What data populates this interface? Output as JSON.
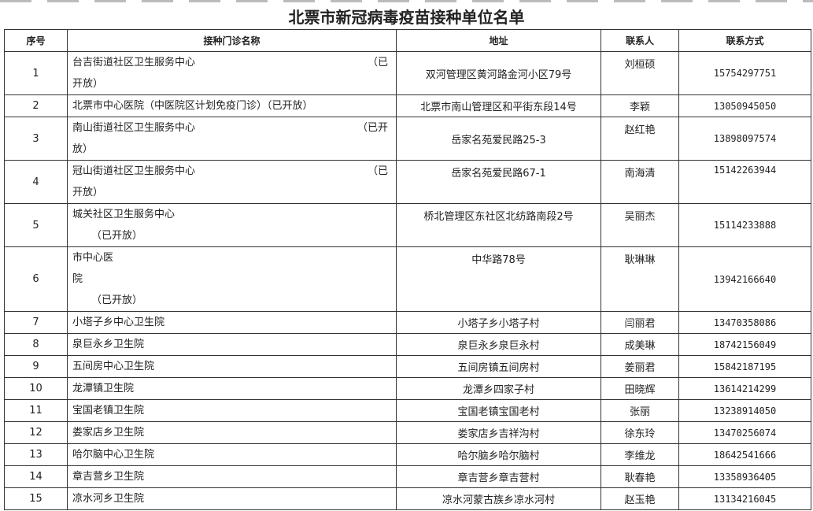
{
  "title": "北票市新冠病毒疫苗接种单位名单",
  "headers": [
    "序号",
    "接种门诊名称",
    "地址",
    "联系人",
    "联系方式"
  ],
  "rows": [
    {
      "no": "1",
      "name": [
        {
          "text": "台吉街道社区卫生服务中心",
          "right": "（已"
        },
        {
          "text": "开放）"
        }
      ],
      "addr": "双河管理区黄河路金河小区79号",
      "person": "刘桓硕",
      "phone": "15754297751",
      "h": 55,
      "addrTop": false
    },
    {
      "no": "2",
      "name": [
        {
          "text": "北票市中心医院（中医院区计划免疫门诊）（已开放）"
        }
      ],
      "addr": "北票市南山管理区和平街东段14号",
      "person": "李颖",
      "phone": "13050945050",
      "h": 28,
      "addrTop": false
    },
    {
      "no": "3",
      "name": [
        {
          "text": "南山街道社区卫生服务中心",
          "right": "（已开"
        },
        {
          "text": "放）"
        }
      ],
      "addr": "岳家名苑爱民路25-3",
      "person": "赵红艳",
      "phone": "13898097574",
      "h": 55,
      "addrTop": false
    },
    {
      "no": "4",
      "name": [
        {
          "text": "冠山街道社区卫生服务中心",
          "right": "（已"
        },
        {
          "text": "开放）"
        }
      ],
      "addr": "岳家名苑爱民路67-1",
      "person": "南海清",
      "phone": "15142263944",
      "h": 55,
      "addrTop": true,
      "phoneTop": true
    },
    {
      "no": "5",
      "name": [
        {
          "text": "城关社区卫生服务中心"
        },
        {
          "text": "（已开放）",
          "indent": true
        }
      ],
      "addr": "桥北管理区东社区北纺路南段2号",
      "person": "吴丽杰",
      "phone": "15114233888",
      "h": 55,
      "addrTop": true
    },
    {
      "no": "6",
      "name": [
        {
          "text": "市中心医"
        },
        {
          "text": "院"
        },
        {
          "text": "（已开放）",
          "indent": true
        }
      ],
      "addr": "中华路78号",
      "person": "耿琳琳",
      "phone": "13942166640",
      "h": 82,
      "addrTop": true
    },
    {
      "no": "7",
      "name": [
        {
          "text": "小塔子乡中心卫生院"
        }
      ],
      "addr": "小塔子乡小塔子村",
      "person": "闫丽君",
      "phone": "13470358086",
      "h": 28
    },
    {
      "no": "8",
      "name": [
        {
          "text": "泉巨永乡卫生院"
        }
      ],
      "addr": "泉巨永乡泉巨永村",
      "person": "成美琳",
      "phone": "18742156049",
      "h": 28
    },
    {
      "no": "9",
      "name": [
        {
          "text": "五间房中心卫生院"
        }
      ],
      "addr": "五间房镇五间房村",
      "person": "姜丽君",
      "phone": "15842187195",
      "h": 28
    },
    {
      "no": "10",
      "name": [
        {
          "text": "龙潭镇卫生院"
        }
      ],
      "addr": "龙潭乡四家子村",
      "person": "田晓辉",
      "phone": "13614214299",
      "h": 28
    },
    {
      "no": "11",
      "name": [
        {
          "text": "宝国老镇卫生院"
        }
      ],
      "addr": "宝国老镇宝国老村",
      "person": "张丽",
      "phone": "13238914050",
      "h": 28
    },
    {
      "no": "12",
      "name": [
        {
          "text": "娄家店乡卫生院"
        }
      ],
      "addr": "娄家店乡吉祥沟村",
      "person": "徐东玲",
      "phone": "13470256074",
      "h": 28
    },
    {
      "no": "13",
      "name": [
        {
          "text": "哈尔脑中心卫生院"
        }
      ],
      "addr": "哈尔脑乡哈尔脑村",
      "person": "李维龙",
      "phone": "18642541666",
      "h": 28
    },
    {
      "no": "14",
      "name": [
        {
          "text": "章吉营乡卫生院"
        }
      ],
      "addr": "章吉营乡章吉营村",
      "person": "耿春艳",
      "phone": "13358936405",
      "h": 28
    },
    {
      "no": "15",
      "name": [
        {
          "text": "凉水河乡卫生院"
        }
      ],
      "addr": "凉水河蒙古族乡凉水河村",
      "person": "赵玉艳",
      "phone": "13134216045",
      "h": 28
    }
  ]
}
